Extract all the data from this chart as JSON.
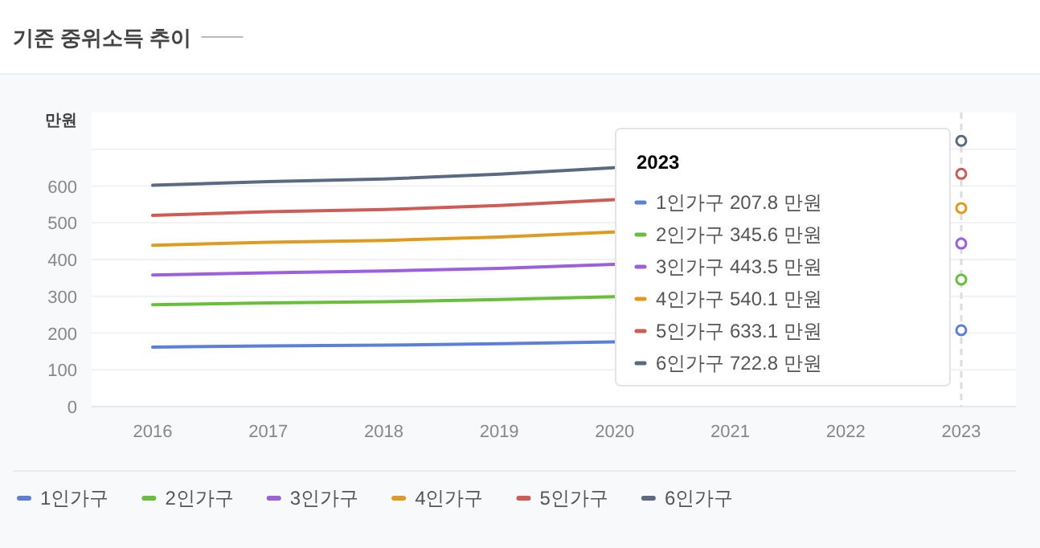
{
  "chart_data": {
    "type": "line",
    "title": "기준 중위소득 추이",
    "ylabel": "만원",
    "categories": [
      "2016",
      "2017",
      "2018",
      "2019",
      "2020",
      "2021",
      "2022",
      "2023"
    ],
    "series": [
      {
        "name": "1인가구",
        "color": "#5b7fdb",
        "values": [
          162,
          165,
          167,
          171,
          176,
          null,
          null,
          207.8
        ]
      },
      {
        "name": "2인가구",
        "color": "#6abf3a",
        "values": [
          277,
          282,
          285,
          291,
          299,
          null,
          null,
          345.6
        ]
      },
      {
        "name": "3인가구",
        "color": "#9b5fe0",
        "values": [
          358,
          364,
          369,
          376,
          387,
          null,
          null,
          443.5
        ]
      },
      {
        "name": "4인가구",
        "color": "#e09a1e",
        "values": [
          439,
          447,
          452,
          461,
          475,
          null,
          null,
          540.1
        ]
      },
      {
        "name": "5인가구",
        "color": "#d05a55",
        "values": [
          520,
          530,
          536,
          547,
          563,
          null,
          null,
          633.1
        ]
      },
      {
        "name": "6인가구",
        "color": "#5a6a80",
        "values": [
          602,
          612,
          619,
          632,
          650,
          null,
          null,
          722.8
        ]
      }
    ],
    "ylim": [
      0,
      800
    ],
    "yticks": [
      0,
      100,
      200,
      300,
      400,
      500,
      600,
      {
        "value": 700,
        "label": null
      }
    ],
    "grid": "y",
    "legend": "bottom",
    "line_style": "solid",
    "ref_lines": [
      {
        "axis": "x",
        "value": "2023",
        "label": null,
        "color": "#dddddd",
        "line_style": "dashed"
      }
    ],
    "annotations": [
      "2023",
      "1인가구 207.8 만원",
      "2인가구 345.6 만원",
      "3인가구 443.5 만원",
      "4인가구 540.1 만원",
      "5인가구 633.1 만원",
      "6인가구 722.8 만원"
    ]
  }
}
